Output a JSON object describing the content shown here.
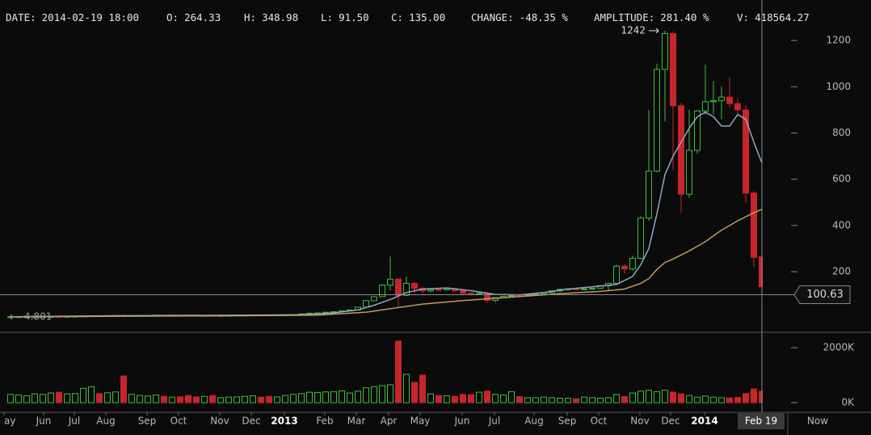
{
  "header": [
    {
      "label": "DATE:",
      "value": "2014-02-19 18:00"
    },
    {
      "label": "O:",
      "value": "264.33"
    },
    {
      "label": "H:",
      "value": "348.98"
    },
    {
      "label": "L:",
      "value": "91.50"
    },
    {
      "label": "C:",
      "value": "135.00"
    },
    {
      "label": "CHANGE:",
      "value": "-48.35 %"
    },
    {
      "label": "AMPLITUDE:",
      "value": "281.40 %"
    },
    {
      "label": "V:",
      "value": "418564.27"
    }
  ],
  "chart_data": {
    "type": "candlestick",
    "up_color": "#3dbf3d",
    "down_color": "#c8252b",
    "xlim": [
      -1.3,
      93.5
    ],
    "ylim": [
      -62,
      1375
    ],
    "yticks": [
      200,
      400,
      600,
      800,
      1000,
      1200
    ],
    "xticks": [
      {
        "value": -0.8,
        "label": "ay"
      },
      {
        "value": 4.1,
        "label": "Jun"
      },
      {
        "value": 7.9,
        "label": "Jul"
      },
      {
        "value": 11.8,
        "label": "Aug"
      },
      {
        "value": 16.9,
        "label": "Sep"
      },
      {
        "value": 20.8,
        "label": "Oct"
      },
      {
        "value": 25.9,
        "label": "Nov"
      },
      {
        "value": 29.8,
        "label": "Dec"
      },
      {
        "value": 33.9,
        "label": "2013"
      },
      {
        "value": 38.9,
        "label": "Feb"
      },
      {
        "value": 42.8,
        "label": "Mar"
      },
      {
        "value": 46.8,
        "label": "Apr"
      },
      {
        "value": 50.7,
        "label": "May"
      },
      {
        "value": 55.9,
        "label": "Jun"
      },
      {
        "value": 59.9,
        "label": "Jul"
      },
      {
        "value": 64.8,
        "label": "Aug"
      },
      {
        "value": 68.9,
        "label": "Sep"
      },
      {
        "value": 72.8,
        "label": "Oct"
      },
      {
        "value": 77.9,
        "label": "Nov"
      },
      {
        "value": 81.7,
        "label": "Dec"
      },
      {
        "value": 85.9,
        "label": "2014"
      }
    ],
    "x": [
      0,
      1,
      2,
      3,
      4,
      5,
      6,
      7,
      8,
      9,
      10,
      11,
      12,
      13,
      14,
      15,
      16,
      17,
      18,
      19,
      20,
      21,
      22,
      23,
      24,
      25,
      26,
      27,
      28,
      29,
      30,
      31,
      32,
      33,
      34,
      35,
      36,
      37,
      38,
      39,
      40,
      41,
      42,
      43,
      44,
      45,
      46,
      47,
      48,
      49,
      50,
      51,
      52,
      53,
      54,
      55,
      56,
      57,
      58,
      59,
      60,
      61,
      62,
      63,
      64,
      65,
      66,
      67,
      68,
      69,
      70,
      71,
      72,
      73,
      74,
      75,
      76,
      77,
      78,
      79,
      80,
      81,
      82,
      83,
      84,
      85,
      86,
      87,
      88,
      89,
      90,
      91,
      92,
      93
    ],
    "open": [
      5.0,
      5.1,
      5.2,
      5.4,
      5.7,
      6.2,
      6.6,
      6.5,
      7.0,
      7.7,
      8.8,
      9.6,
      8.6,
      9.8,
      11.4,
      10.2,
      10.8,
      10.9,
      11.2,
      12.2,
      11.9,
      12.3,
      12.0,
      11.4,
      10.9,
      10.9,
      10.8,
      10.9,
      11.5,
      12.4,
      12.5,
      13.4,
      13.3,
      13.0,
      13.4,
      13.8,
      14.6,
      17.6,
      20.4,
      21.7,
      24.8,
      26.9,
      31.0,
      34.5,
      46.9,
      74.9,
      92.0,
      142.0,
      168.0,
      98.0,
      150,
      128,
      117,
      123,
      122,
      127,
      118,
      107,
      103,
      106,
      76,
      88,
      94,
      97,
      95,
      99,
      104,
      110,
      117,
      124,
      126,
      123,
      126,
      128,
      140,
      150,
      224,
      212,
      258,
      432,
      635,
      1075,
      1230,
      918,
      535,
      725,
      895,
      935,
      940,
      955,
      927,
      900,
      540,
      264.33
    ],
    "high": [
      5.2,
      5.3,
      5.5,
      5.8,
      6.3,
      6.7,
      6.8,
      7.1,
      7.8,
      8.9,
      9.8,
      10.0,
      10.0,
      11.1,
      15.4,
      11.0,
      11.2,
      11.5,
      12.5,
      12.5,
      12.4,
      12.6,
      12.2,
      11.9,
      11.3,
      11.2,
      11.0,
      11.6,
      12.6,
      12.8,
      13.6,
      13.7,
      13.6,
      13.5,
      14.0,
      15.0,
      17.8,
      20.9,
      22.5,
      25.3,
      27.0,
      31.9,
      35.0,
      48.0,
      78.0,
      95.0,
      147.0,
      266.0,
      170.0,
      180.0,
      155,
      133,
      125,
      128,
      130,
      130,
      122,
      110,
      112,
      108,
      90,
      95,
      99,
      102,
      101,
      105,
      112,
      118,
      126,
      128,
      130,
      127,
      130,
      142,
      152,
      230,
      232,
      270,
      440,
      900,
      1100,
      1242,
      1240,
      930,
      900,
      900,
      1095,
      1025,
      1000,
      1043,
      950,
      920,
      550,
      348.98
    ],
    "low": [
      4.8,
      5.0,
      5.1,
      5.3,
      5.6,
      6.1,
      6.3,
      6.4,
      6.9,
      7.5,
      8.5,
      8.0,
      8.5,
      9.6,
      7.1,
      9.8,
      10.4,
      10.6,
      11.0,
      11.6,
      11.8,
      11.9,
      11.2,
      10.8,
      10.6,
      10.5,
      10.4,
      10.8,
      11.4,
      12.0,
      12.3,
      13.0,
      12.8,
      12.9,
      13.2,
      13.6,
      14.5,
      17.2,
      19.6,
      21.0,
      24.0,
      26.5,
      30.0,
      34.0,
      46.0,
      72.0,
      90.0,
      120.0,
      50.0,
      95.0,
      108,
      105,
      110,
      115,
      118,
      115,
      100,
      98,
      100,
      65,
      68,
      85,
      90,
      92,
      93,
      96,
      102,
      105,
      113,
      118,
      120,
      120,
      122,
      125,
      115,
      145,
      190,
      205,
      255,
      420,
      630,
      850,
      640,
      455,
      520,
      710,
      880,
      880,
      860,
      910,
      880,
      500,
      220,
      91.5
    ],
    "close": [
      5.1,
      5.2,
      5.4,
      5.7,
      6.2,
      6.6,
      6.5,
      7.0,
      7.7,
      8.8,
      9.6,
      8.6,
      9.8,
      10.9,
      10.2,
      10.8,
      10.9,
      11.2,
      12.2,
      11.9,
      12.3,
      12.0,
      11.4,
      10.9,
      11.0,
      10.8,
      10.9,
      11.5,
      12.4,
      12.5,
      13.4,
      13.3,
      13.0,
      13.4,
      13.8,
      14.6,
      17.6,
      20.4,
      21.7,
      24.8,
      26.9,
      31.0,
      34.5,
      46.9,
      74.9,
      92.0,
      142.0,
      168.0,
      98.0,
      150.0,
      128,
      117,
      123,
      122,
      127,
      118,
      107,
      103,
      106,
      76,
      88,
      94,
      97,
      95,
      99,
      104,
      110,
      117,
      124,
      126,
      123,
      126,
      128,
      140,
      150,
      224,
      212,
      258,
      432,
      635,
      1075,
      1230,
      918,
      535,
      725,
      895,
      935,
      940,
      955,
      927,
      900,
      540,
      262,
      135.0
    ],
    "ma": [
      {
        "color": "#8ea9c4",
        "x": [
          0,
          10,
          20,
          30,
          36,
          40,
          43,
          45,
          47,
          49,
          51,
          54,
          57,
          60,
          63,
          66,
          69,
          72,
          75,
          77,
          78,
          79,
          80,
          81,
          82,
          83,
          84,
          85,
          86,
          87,
          88,
          89,
          90,
          91,
          92,
          93
        ],
        "values": [
          5,
          9,
          11,
          12,
          14,
          22,
          35,
          55,
          80,
          110,
          125,
          130,
          118,
          102,
          100,
          110,
          125,
          135,
          145,
          180,
          230,
          300,
          450,
          620,
          700,
          760,
          820,
          870,
          890,
          870,
          830,
          830,
          880,
          860,
          760,
          670
        ]
      },
      {
        "color": "#c39a5e",
        "x": [
          0,
          30,
          38,
          44,
          48,
          51,
          56,
          62,
          68,
          73,
          76,
          78,
          79,
          80,
          81,
          82,
          84,
          86,
          88,
          90,
          92,
          93
        ],
        "values": [
          5,
          10,
          12,
          25,
          45,
          60,
          75,
          90,
          105,
          115,
          125,
          150,
          170,
          210,
          240,
          255,
          290,
          330,
          380,
          420,
          455,
          470
        ]
      }
    ],
    "max_label": 1242,
    "max_x": 81,
    "low_label": 4.801,
    "crosshair": {
      "x": 93,
      "x_label": "Feb 19",
      "price": 100.63
    },
    "now_label": "Now",
    "volume": {
      "ylim": [
        -353,
        2559
      ],
      "yticks": [
        {
          "value": 0,
          "label": "0K"
        },
        {
          "value": 2000,
          "label": "2000K"
        }
      ],
      "values": [
        300,
        280,
        250,
        320,
        300,
        350,
        380,
        320,
        330,
        520,
        580,
        330,
        360,
        390,
        970,
        300,
        260,
        240,
        280,
        230,
        200,
        210,
        260,
        210,
        230,
        260,
        180,
        200,
        210,
        230,
        250,
        200,
        230,
        210,
        260,
        300,
        330,
        380,
        370,
        390,
        400,
        430,
        350,
        420,
        540,
        580,
        620,
        650,
        2240,
        1030,
        735,
        1000,
        320,
        260,
        250,
        230,
        300,
        290,
        380,
        420,
        300,
        280,
        400,
        220,
        180,
        180,
        200,
        180,
        160,
        160,
        140,
        200,
        180,
        160,
        180,
        300,
        220,
        350,
        420,
        450,
        400,
        450,
        380,
        320,
        260,
        200,
        240,
        200,
        180,
        170,
        190,
        330,
        500,
        418.56
      ]
    }
  }
}
